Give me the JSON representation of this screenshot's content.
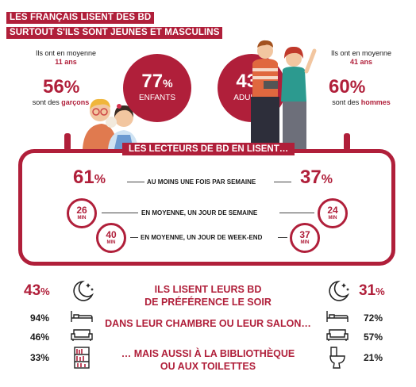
{
  "title": {
    "line1": "LES FRANÇAIS LISENT DES BD",
    "line2": "SURTOUT S'ILS SONT JEUNES ET MASCULINS"
  },
  "children": {
    "avg_label": "Ils ont en moyenne",
    "avg_age": "11 ans",
    "pct": "56",
    "pct_unit": "%",
    "pct_label_pre": "sont des",
    "pct_label_em": "garçons",
    "circle_pct": "77",
    "circle_unit": "%",
    "circle_label": "ENFANTS"
  },
  "adults": {
    "avg_label": "Ils ont en moyenne",
    "avg_age": "41 ans",
    "pct": "60",
    "pct_unit": "%",
    "pct_label_pre": "sont des",
    "pct_label_em": "hommes",
    "circle_pct": "43",
    "circle_unit": "%",
    "circle_label": "ADULTES"
  },
  "frequency": {
    "banner": "LES LECTEURS DE BD EN LISENT…",
    "weekly": {
      "kids": "61",
      "adults": "37",
      "unit": "%",
      "label": "AU MOINS UNE FOIS PAR SEMAINE"
    },
    "weekday": {
      "kids": "26",
      "adults": "24",
      "unit": "MIN",
      "label": "EN MOYENNE, UN JOUR DE SEMAINE"
    },
    "weekend": {
      "kids": "40",
      "adults": "37",
      "unit": "MIN",
      "label": "EN MOYENNE, UN JOUR DE WEEK-END"
    }
  },
  "habits": {
    "evening": {
      "kids": "43",
      "adults": "31",
      "unit": "%",
      "label1": "ILS LISENT LEURS BD",
      "label2": "DE PRÉFÉRENCE LE SOIR"
    },
    "room": {
      "kids": "94%",
      "adults": "72%",
      "label": "DANS LEUR CHAMBRE OU LEUR SALON…"
    },
    "library": {
      "kids": "46%",
      "adults": "57%"
    },
    "library_label1": "… MAIS AUSSI À LA BIBLIOTHÈQUE",
    "library_label2": "OU AUX TOILETTES",
    "toilet": {
      "kids": "33%",
      "adults": "21%"
    }
  },
  "colors": {
    "accent": "#b01f3a",
    "text": "#1a1a1a",
    "background": "#ffffff"
  },
  "icons": [
    "moon-stars-icon",
    "bed-icon",
    "sofa-icon",
    "bookshelf-icon",
    "toilet-icon",
    "stopwatch-icon"
  ]
}
